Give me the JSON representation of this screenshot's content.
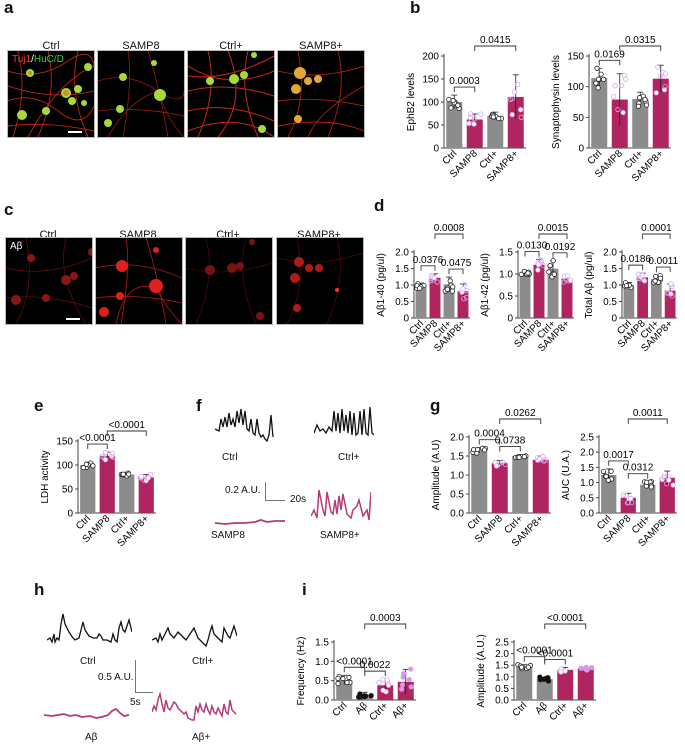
{
  "colors": {
    "grey_bar": "#8c8c8c",
    "magenta_bar": "#b0245f",
    "open_pink": "#dca8ee",
    "filled_pink": "#d996ee",
    "trace_black": "#111111",
    "trace_magenta": "#b53a78"
  },
  "panels": {
    "a": {
      "letter": "a",
      "stain_label_red": "Tuj1",
      "stain_sep": "/",
      "stain_label_green": "HuC/D",
      "images": [
        {
          "title": "Ctrl"
        },
        {
          "title": "SAMP8"
        },
        {
          "title": "Ctrl+"
        },
        {
          "title": "SAMP8+"
        }
      ]
    },
    "b": {
      "letter": "b"
    },
    "c": {
      "letter": "c",
      "stain_label": "Aβ",
      "images": [
        {
          "title": "Ctrl"
        },
        {
          "title": "SAMP8"
        },
        {
          "title": "Ctrl+"
        },
        {
          "title": "SAMP8+"
        }
      ]
    },
    "d": {
      "letter": "d"
    },
    "e": {
      "letter": "e"
    },
    "f": {
      "letter": "f",
      "traces": [
        {
          "label": "Ctrl"
        },
        {
          "label": "Ctrl+"
        },
        {
          "label": "SAMP8"
        },
        {
          "label": "SAMP8+"
        }
      ],
      "scale_y": "0.2 A.U.",
      "scale_x": "20s"
    },
    "g": {
      "letter": "g"
    },
    "h": {
      "letter": "h",
      "traces": [
        {
          "label": "Ctrl"
        },
        {
          "label": "Ctrl+"
        },
        {
          "label": "Aβ"
        },
        {
          "label": "Aβ+"
        }
      ],
      "scale_y": "0.5 A.U.",
      "scale_x": "5s"
    },
    "i": {
      "letter": "i"
    }
  },
  "chart_data": [
    {
      "id": "b1",
      "type": "bar",
      "ylabel": "EphB2 levels",
      "categories": [
        "Ctrl",
        "SAMP8",
        "Ctrl+",
        "SAMP8+"
      ],
      "values": [
        100,
        62,
        70,
        111
      ],
      "errors": [
        15,
        12,
        8,
        48
      ],
      "ylim": [
        0,
        200
      ],
      "yticks": [
        "0",
        "50",
        "100",
        "150",
        "200"
      ],
      "comparisons": [
        {
          "from": 0,
          "to": 1,
          "p": "0.0003"
        },
        {
          "from": 1,
          "to": 3,
          "p": "0.0415"
        }
      ]
    },
    {
      "id": "b2",
      "type": "bar",
      "ylabel": "Synaptophysin levels",
      "categories": [
        "Ctrl",
        "SAMP8",
        "Ctrl+",
        "SAMP8+"
      ],
      "values": [
        114,
        79,
        80,
        113
      ],
      "errors": [
        16,
        42,
        11,
        22
      ],
      "ylim": [
        0,
        150
      ],
      "yticks": [
        "0",
        "50",
        "100",
        "150"
      ],
      "comparisons": [
        {
          "from": 0,
          "to": 1,
          "p": "0.0169"
        },
        {
          "from": 1,
          "to": 3,
          "p": "0.0315"
        }
      ]
    },
    {
      "id": "d1",
      "type": "bar",
      "ylabel": "Aβ1-40 (pg/ul)",
      "categories": [
        "Ctrl",
        "SAMP8",
        "Ctrl+",
        "SAMP8+"
      ],
      "values": [
        0.98,
        1.22,
        1.02,
        0.81
      ],
      "errors": [
        0.08,
        0.12,
        0.22,
        0.22
      ],
      "ylim": [
        0,
        2.0
      ],
      "yticks": [
        "0",
        "0.5",
        "1.0",
        "1.5",
        "2.0"
      ],
      "comparisons": [
        {
          "from": 0,
          "to": 1,
          "p": "0.0376"
        },
        {
          "from": 2,
          "to": 3,
          "p": "0.0475"
        },
        {
          "from": 1,
          "to": 3,
          "p": "0.0008"
        }
      ]
    },
    {
      "id": "d2",
      "type": "bar",
      "ylabel": "Aβ1-42 (pg/ul)",
      "categories": [
        "Ctrl",
        "SAMP8",
        "Ctrl+",
        "SAMP8+"
      ],
      "values": [
        1.0,
        1.21,
        1.12,
        0.89
      ],
      "errors": [
        0.07,
        0.12,
        0.18,
        0.08
      ],
      "ylim": [
        0,
        1.5
      ],
      "yticks": [
        "0",
        "0.5",
        "1.0",
        "1.5"
      ],
      "comparisons": [
        {
          "from": 0,
          "to": 1,
          "p": "0.0130"
        },
        {
          "from": 2,
          "to": 3,
          "p": "0.0192"
        },
        {
          "from": 1,
          "to": 3,
          "p": "0.0015"
        }
      ]
    },
    {
      "id": "d3",
      "type": "bar",
      "ylabel": "Total Aβ (pg/ul)",
      "categories": [
        "Ctrl",
        "SAMP8",
        "Ctrl+",
        "SAMP8+"
      ],
      "values": [
        1.0,
        1.23,
        1.18,
        0.83
      ],
      "errors": [
        0.08,
        0.13,
        0.12,
        0.2
      ],
      "ylim": [
        0,
        2.0
      ],
      "yticks": [
        "0",
        "0.5",
        "1.0",
        "1.5",
        "2.0"
      ],
      "comparisons": [
        {
          "from": 0,
          "to": 1,
          "p": "0.0186"
        },
        {
          "from": 2,
          "to": 3,
          "p": "0.0011"
        },
        {
          "from": 1,
          "to": 3,
          "p": "0.0001"
        }
      ]
    },
    {
      "id": "e",
      "type": "bar",
      "ylabel": "LDH activity",
      "categories": [
        "Ctrl",
        "SAMP8",
        "Ctrl+",
        "SAMP8+"
      ],
      "values": [
        100,
        119,
        80,
        74
      ],
      "errors": [
        6,
        8,
        5,
        6
      ],
      "ylim": [
        0,
        150
      ],
      "yticks": [
        "0",
        "50",
        "100",
        "150"
      ],
      "comparisons": [
        {
          "from": 0,
          "to": 1,
          "p": "<0.0001"
        },
        {
          "from": 1,
          "to": 3,
          "p": "<0.0001"
        }
      ]
    },
    {
      "id": "g1",
      "type": "bar",
      "ylabel": "Amplitude (A.U)",
      "categories": [
        "Ctrl",
        "SAMP8",
        "Ctrl+",
        "SAMP8+"
      ],
      "values": [
        1.65,
        1.31,
        1.5,
        1.4
      ],
      "errors": [
        0.07,
        0.07,
        0.04,
        0.1
      ],
      "ylim": [
        0,
        2.0
      ],
      "yticks": [
        "0.0",
        "0.5",
        "1.0",
        "1.5",
        "2.0"
      ],
      "comparisons": [
        {
          "from": 0,
          "to": 1,
          "p": "0.0004"
        },
        {
          "from": 1,
          "to": 2,
          "p": "0.0738"
        },
        {
          "from": 1,
          "to": 3,
          "p": "0.0262"
        }
      ]
    },
    {
      "id": "g2",
      "type": "bar",
      "ylabel": "AUC (U.A.)",
      "categories": [
        "Ctrl",
        "SAMP8",
        "Ctrl+",
        "SAMP8+"
      ],
      "values": [
        1.25,
        0.5,
        0.93,
        1.16
      ],
      "errors": [
        0.2,
        0.15,
        0.1,
        0.22
      ],
      "ylim": [
        0,
        2.5
      ],
      "yticks": [
        "0.0",
        "0.5",
        "1.0",
        "1.5",
        "2.0",
        "2.5"
      ],
      "comparisons": [
        {
          "from": 0,
          "to": 1,
          "p": "0.0017"
        },
        {
          "from": 1,
          "to": 2,
          "p": "0.0312"
        },
        {
          "from": 1,
          "to": 3,
          "p": "0.0011"
        }
      ]
    },
    {
      "id": "i1",
      "type": "bar",
      "ylabel": "Frequency (Hz)",
      "categories": [
        "Ctrl",
        "Aβ",
        "Ctrl+",
        "Aβ+"
      ],
      "values": [
        0.52,
        0.14,
        0.38,
        0.47
      ],
      "errors": [
        0.12,
        0.06,
        0.16,
        0.32
      ],
      "ylim": [
        0,
        1.5
      ],
      "yticks": [
        "0.0",
        "0.5",
        "1.0",
        "1.5"
      ],
      "comparisons": [
        {
          "from": 0,
          "to": 1,
          "p": "<0.0001"
        },
        {
          "from": 1,
          "to": 2,
          "p": "0.0022"
        },
        {
          "from": 1,
          "to": 3,
          "p": "0.0003"
        }
      ]
    },
    {
      "id": "i2",
      "type": "bar",
      "ylabel": "Amplitude (A.U.)",
      "categories": [
        "Ctrl",
        "Aβ",
        "Ctrl+",
        "Aβ+"
      ],
      "values": [
        1.4,
        0.9,
        1.3,
        1.35
      ],
      "errors": [
        0.12,
        0.08,
        0.1,
        0.06
      ],
      "ylim": [
        0,
        2.5
      ],
      "yticks": [
        "0.0",
        "0.5",
        "1.0",
        "1.5",
        "2.0",
        "2.5"
      ],
      "comparisons": [
        {
          "from": 0,
          "to": 1,
          "p": "<0.0001"
        },
        {
          "from": 1,
          "to": 2,
          "p": "<0.0001"
        },
        {
          "from": 1,
          "to": 3,
          "p": "<0.0001"
        }
      ]
    }
  ]
}
